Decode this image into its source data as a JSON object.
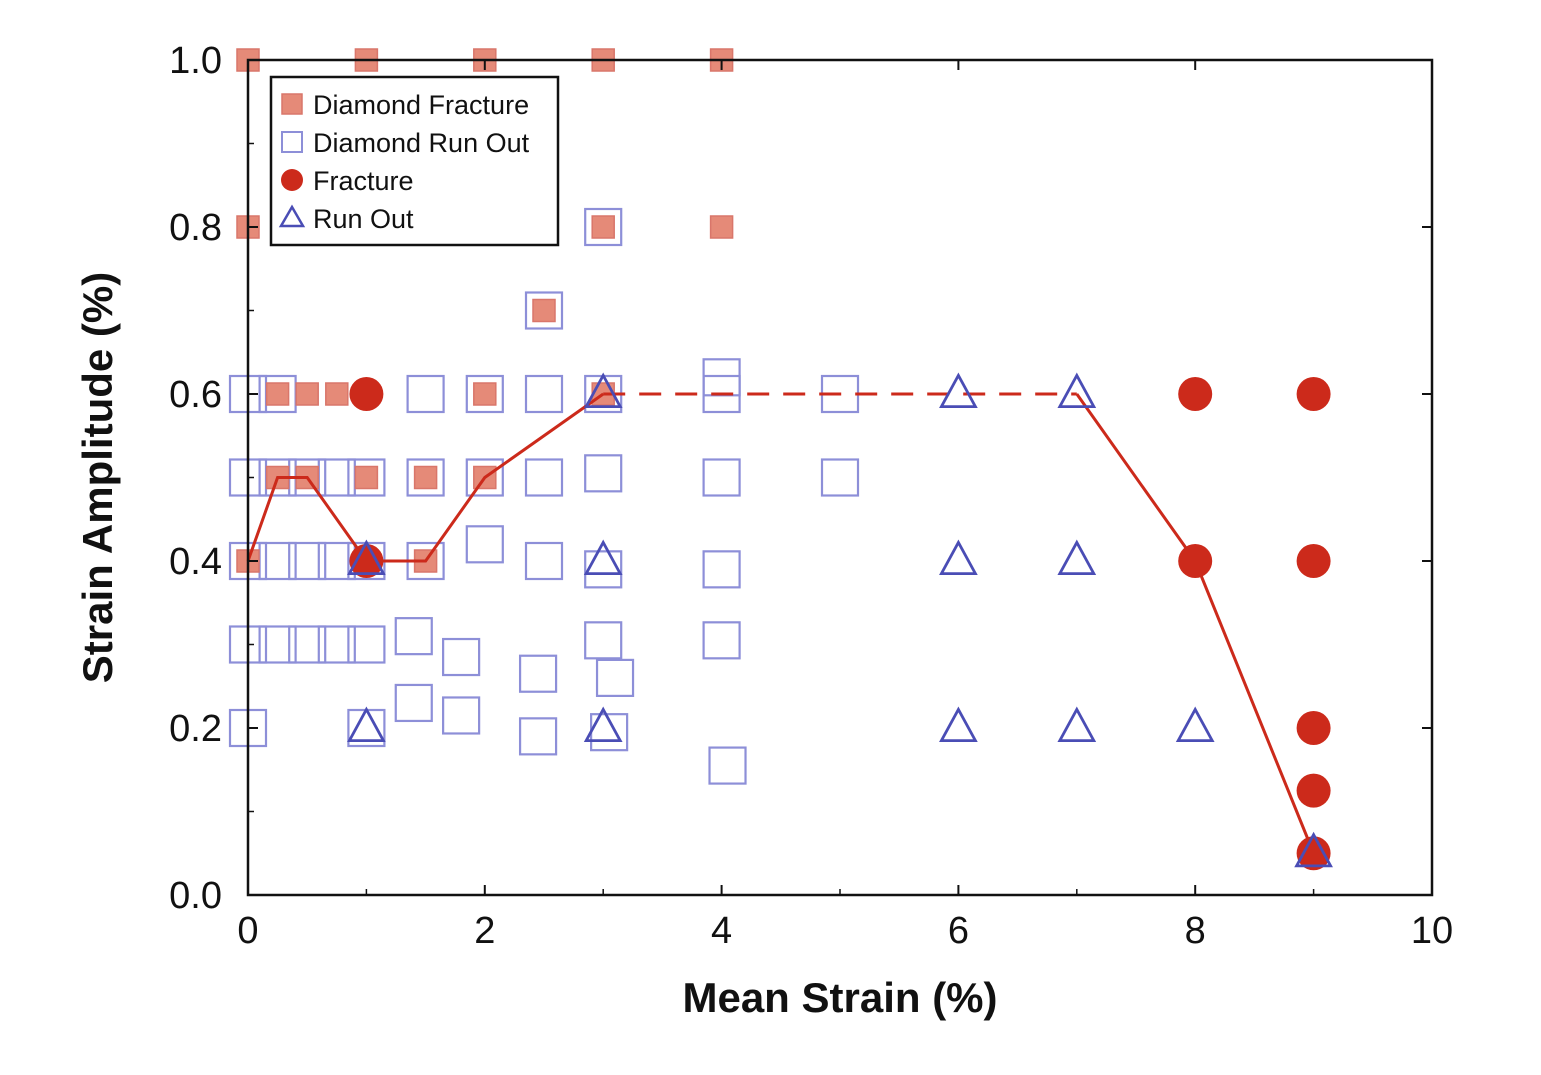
{
  "chart_data": {
    "type": "scatter",
    "xlabel": "Mean Strain (%)",
    "ylabel": "Strain Amplitude (%)",
    "xlim": [
      0,
      10
    ],
    "ylim": [
      0,
      1.0
    ],
    "x_ticks": [
      "0",
      "2",
      "4",
      "6",
      "8",
      "10"
    ],
    "y_ticks": [
      "0.0",
      "0.2",
      "0.4",
      "0.6",
      "0.8",
      "1.0"
    ],
    "legend_position": "top-left",
    "colors": {
      "diamond_fracture_fill": "#e58a78",
      "diamond_fracture_stroke": "#d9766a",
      "diamond_runout": "#8d8fd8",
      "fracture": "#cc2a1b",
      "runout": "#4a4db5",
      "boundary": "#cc2a1b"
    },
    "series": [
      {
        "name": "Diamond Fracture",
        "marker": "filled-square",
        "points": [
          [
            0,
            1.0
          ],
          [
            1,
            1.0
          ],
          [
            2,
            1.0
          ],
          [
            3,
            1.0
          ],
          [
            4,
            1.0
          ],
          [
            0,
            0.8
          ],
          [
            3,
            0.8
          ],
          [
            4,
            0.8
          ],
          [
            2.5,
            0.7
          ],
          [
            0.25,
            0.6
          ],
          [
            0.5,
            0.6
          ],
          [
            0.75,
            0.6
          ],
          [
            2,
            0.6
          ],
          [
            3,
            0.6
          ],
          [
            0.25,
            0.5
          ],
          [
            0.5,
            0.5
          ],
          [
            1,
            0.5
          ],
          [
            1.5,
            0.5
          ],
          [
            2,
            0.5
          ],
          [
            0,
            0.4
          ],
          [
            1,
            0.4
          ],
          [
            1.5,
            0.4
          ]
        ]
      },
      {
        "name": "Diamond Run Out",
        "marker": "open-square",
        "points": [
          [
            3,
            0.8
          ],
          [
            2.5,
            0.7
          ],
          [
            0,
            0.6
          ],
          [
            0.25,
            0.6
          ],
          [
            1.5,
            0.6
          ],
          [
            2,
            0.6
          ],
          [
            2.5,
            0.6
          ],
          [
            3,
            0.6
          ],
          [
            4,
            0.6
          ],
          [
            4,
            0.62
          ],
          [
            5,
            0.6
          ],
          [
            0,
            0.5
          ],
          [
            0.25,
            0.5
          ],
          [
            0.5,
            0.5
          ],
          [
            0.75,
            0.5
          ],
          [
            1,
            0.5
          ],
          [
            1.5,
            0.5
          ],
          [
            2,
            0.5
          ],
          [
            2.5,
            0.5
          ],
          [
            3,
            0.505
          ],
          [
            4,
            0.5
          ],
          [
            5,
            0.5
          ],
          [
            0,
            0.4
          ],
          [
            0.25,
            0.4
          ],
          [
            0.5,
            0.4
          ],
          [
            0.75,
            0.4
          ],
          [
            1,
            0.4
          ],
          [
            1.5,
            0.4
          ],
          [
            2,
            0.42
          ],
          [
            2.5,
            0.4
          ],
          [
            3,
            0.39
          ],
          [
            4,
            0.39
          ],
          [
            0,
            0.3
          ],
          [
            0.25,
            0.3
          ],
          [
            0.5,
            0.3
          ],
          [
            0.75,
            0.3
          ],
          [
            1,
            0.3
          ],
          [
            1.4,
            0.31
          ],
          [
            1.8,
            0.285
          ],
          [
            2.45,
            0.265
          ],
          [
            3,
            0.305
          ],
          [
            3.1,
            0.26
          ],
          [
            4,
            0.305
          ],
          [
            0,
            0.2
          ],
          [
            1,
            0.2
          ],
          [
            1.4,
            0.23
          ],
          [
            1.8,
            0.215
          ],
          [
            2.45,
            0.19
          ],
          [
            3.05,
            0.195
          ],
          [
            4.05,
            0.155
          ]
        ]
      },
      {
        "name": "Fracture",
        "marker": "filled-circle",
        "points": [
          [
            1,
            0.6
          ],
          [
            1,
            0.4
          ],
          [
            8,
            0.6
          ],
          [
            8,
            0.4
          ],
          [
            9,
            0.6
          ],
          [
            9,
            0.4
          ],
          [
            9,
            0.2
          ],
          [
            9,
            0.125
          ],
          [
            9,
            0.05
          ]
        ]
      },
      {
        "name": "Run Out",
        "marker": "open-triangle",
        "points": [
          [
            1,
            0.4
          ],
          [
            1,
            0.2
          ],
          [
            3,
            0.6
          ],
          [
            3,
            0.4
          ],
          [
            3,
            0.2
          ],
          [
            6,
            0.6
          ],
          [
            6,
            0.4
          ],
          [
            6,
            0.2
          ],
          [
            7,
            0.6
          ],
          [
            7,
            0.4
          ],
          [
            7,
            0.2
          ],
          [
            8,
            0.2
          ],
          [
            9,
            0.05
          ]
        ]
      }
    ],
    "boundary_solid_1": [
      [
        0,
        0.4
      ],
      [
        0.25,
        0.5
      ],
      [
        0.5,
        0.5
      ],
      [
        1,
        0.4
      ],
      [
        1.5,
        0.4
      ],
      [
        2,
        0.5
      ],
      [
        3,
        0.6
      ]
    ],
    "boundary_dashed": [
      [
        3,
        0.6
      ],
      [
        7,
        0.6
      ]
    ],
    "boundary_solid_2": [
      [
        7,
        0.6
      ],
      [
        8,
        0.4
      ],
      [
        9,
        0.05
      ]
    ]
  }
}
